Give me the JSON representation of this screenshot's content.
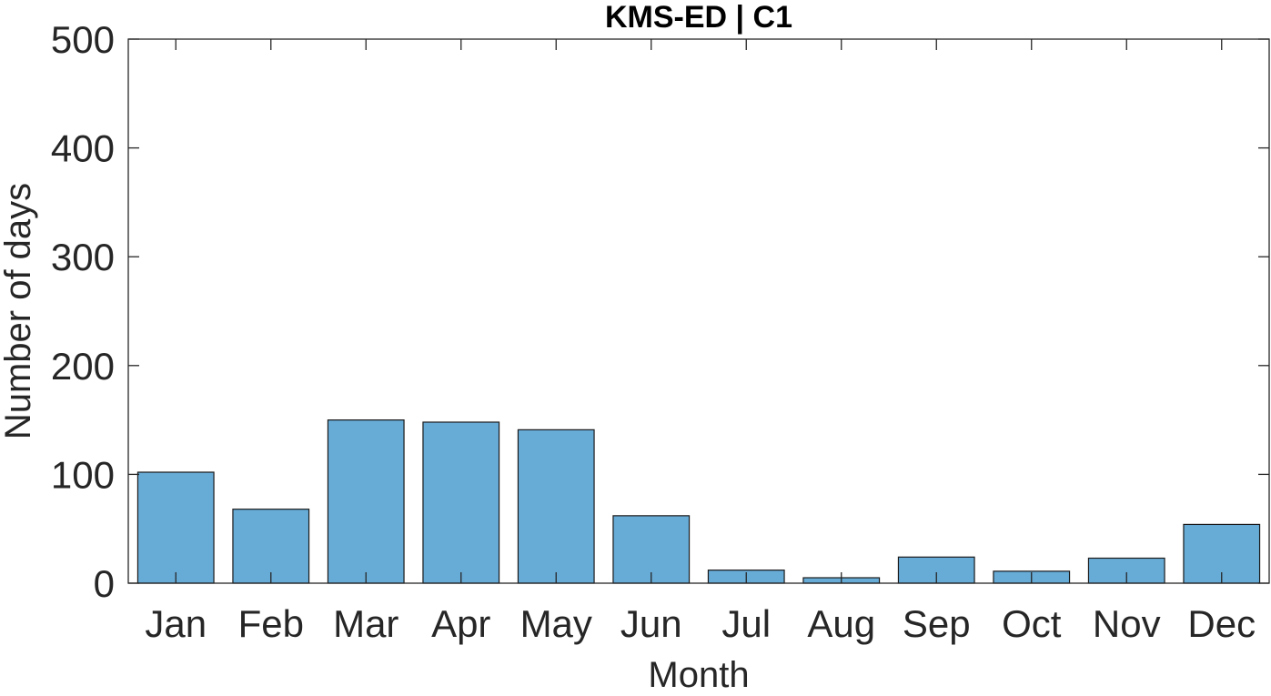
{
  "chart_data": {
    "type": "bar",
    "title": "KMS-ED | C1",
    "xlabel": "Month",
    "ylabel": "Number of days",
    "categories": [
      "Jan",
      "Feb",
      "Mar",
      "Apr",
      "May",
      "Jun",
      "Jul",
      "Aug",
      "Sep",
      "Oct",
      "Nov",
      "Dec"
    ],
    "values": [
      102,
      68,
      150,
      148,
      141,
      62,
      12,
      5,
      24,
      11,
      23,
      54
    ],
    "ylim": [
      0,
      500
    ],
    "yticks": [
      "0",
      "100",
      "200",
      "300",
      "400",
      "500"
    ],
    "grid": false,
    "legend": "none",
    "colors": {
      "bar_fill": "#67abd7",
      "bar_edge": "#1a1a1a",
      "axis": "#262626"
    }
  }
}
